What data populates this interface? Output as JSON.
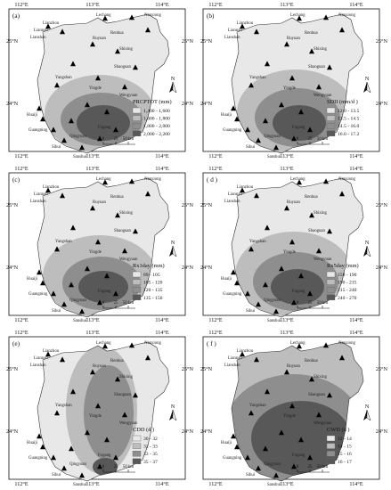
{
  "figure": {
    "panels": [
      {
        "id": "a",
        "tag": "(a)",
        "legend_title": "PRCPTOT (mm)",
        "classes": [
          "1,400 - 1,600",
          "1,600 - 1,800",
          "1,800 - 2,000",
          "2,000 - 2,200"
        ]
      },
      {
        "id": "b",
        "tag": "(b)",
        "legend_title": "SDII (mm/d )",
        "classes": [
          "12.0 - 13.5",
          "13.5 - 14.5",
          "14.5 - 16.0",
          "16.0 - 17.2"
        ]
      },
      {
        "id": "c",
        "tag": "(c)",
        "legend_title": "Rx1day (mm)",
        "classes": [
          "89 - 105",
          "105 - 120",
          "120 - 135",
          "135 - 150"
        ]
      },
      {
        "id": "d",
        "tag": "( d )",
        "legend_title": "Rx5day (mm)",
        "classes": [
          "158 - 190",
          "190 - 215",
          "215 - 240",
          "240 - 270"
        ]
      },
      {
        "id": "e",
        "tag": "(e)",
        "legend_title": "CDD (d )",
        "classes": [
          "30 - 32",
          "32 - 33",
          "33 - 35",
          "35 - 37"
        ]
      },
      {
        "id": "f",
        "tag": "( f )",
        "legend_title": "CWD (d )",
        "classes": [
          "12 - 14",
          "14 - 15",
          "15 - 16",
          "16 - 17"
        ]
      }
    ],
    "longitude_labels": [
      "112°E",
      "113°E",
      "114°E"
    ],
    "latitude_labels": [
      "25°N",
      "24°N"
    ],
    "north_label": "N",
    "scale_labels": [
      "0",
      "25",
      "50 km"
    ],
    "cities": [
      "Lechang",
      "Renhua",
      "Nanxiong",
      "Lianzhou",
      "Liannan",
      "Lianshan",
      "Ruyuan",
      "Shixing",
      "Shaoguan",
      "Yangshan",
      "Yingde",
      "Wengyuan",
      "Huaiji",
      "Guangning",
      "Qingyuan",
      "Fogang",
      "Sihui",
      "Sanshui"
    ],
    "class_colors": [
      "#e8e8e8",
      "#bdbdbd",
      "#8e8e8e",
      "#585858"
    ]
  }
}
